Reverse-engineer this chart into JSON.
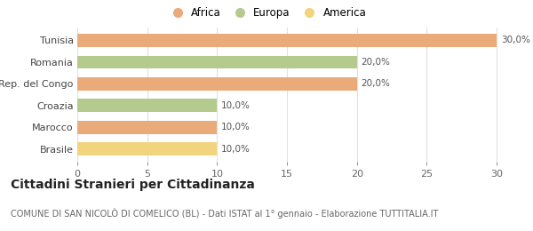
{
  "categories": [
    "Brasile",
    "Marocco",
    "Croazia",
    "Rep. del Congo",
    "Romania",
    "Tunisia"
  ],
  "values": [
    10.0,
    10.0,
    10.0,
    20.0,
    20.0,
    30.0
  ],
  "colors": [
    "#f2d47e",
    "#eaaa7a",
    "#b5cb8e",
    "#eaaa7a",
    "#b5cb8e",
    "#eaaa7a"
  ],
  "labels": [
    "10,0%",
    "10,0%",
    "10,0%",
    "20,0%",
    "20,0%",
    "30,0%"
  ],
  "legend_items": [
    {
      "label": "Africa",
      "color": "#eaaa7a"
    },
    {
      "label": "Europa",
      "color": "#b5cb8e"
    },
    {
      "label": "America",
      "color": "#f2d47e"
    }
  ],
  "xlim": [
    0,
    30.5
  ],
  "xticks": [
    0,
    5,
    10,
    15,
    20,
    25,
    30
  ],
  "title": "Cittadini Stranieri per Cittadinanza",
  "subtitle": "COMUNE DI SAN NICOLÒ DI COMELICO (BL) - Dati ISTAT al 1° gennaio - Elaborazione TUTTITALIA.IT",
  "bar_height": 0.6,
  "background_color": "#ffffff",
  "grid_color": "#e0e0e0",
  "label_fontsize": 7.5,
  "tick_fontsize": 8,
  "ytick_fontsize": 8,
  "title_fontsize": 10,
  "subtitle_fontsize": 7
}
